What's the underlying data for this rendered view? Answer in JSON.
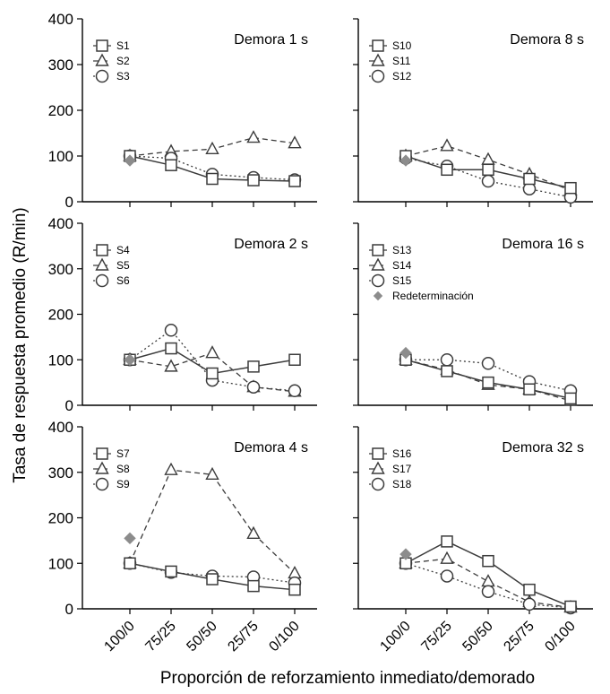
{
  "chart_data": {
    "type": "line",
    "ylabel": "Tasa de respuesta promedio (R/min)",
    "xlabel": "Proporción de reforzamiento inmediato/demorado",
    "categories": [
      "100/0",
      "75/25",
      "50/50",
      "25/75",
      "0/100"
    ],
    "ylim": [
      0,
      400
    ],
    "yticks": [
      "0",
      "100",
      "200",
      "300",
      "400"
    ],
    "redetermination_label": "Redeterminación",
    "panels": [
      {
        "title": "Demora 1 s",
        "series": [
          {
            "name": "S1",
            "marker": "square",
            "line": "solid",
            "values": [
              100,
              80,
              50,
              47,
              45
            ]
          },
          {
            "name": "S2",
            "marker": "triangle",
            "line": "dashed",
            "values": [
              100,
              110,
              115,
              140,
              128
            ]
          },
          {
            "name": "S3",
            "marker": "circle",
            "line": "dotted",
            "values": [
              100,
              95,
              60,
              53,
              48
            ]
          }
        ],
        "redetermination": 90
      },
      {
        "title": "Demora 8 s",
        "series": [
          {
            "name": "S10",
            "marker": "square",
            "line": "solid",
            "values": [
              100,
              70,
              70,
              50,
              30
            ]
          },
          {
            "name": "S11",
            "marker": "triangle",
            "line": "dashed",
            "values": [
              100,
              122,
              92,
              60,
              25
            ]
          },
          {
            "name": "S12",
            "marker": "circle",
            "line": "dotted",
            "values": [
              95,
              78,
              45,
              28,
              10
            ]
          }
        ],
        "redetermination": 90
      },
      {
        "title": "Demora 2 s",
        "series": [
          {
            "name": "S4",
            "marker": "square",
            "line": "solid",
            "values": [
              100,
              125,
              70,
              85,
              100
            ]
          },
          {
            "name": "S5",
            "marker": "triangle",
            "line": "dashed",
            "values": [
              100,
              85,
              115,
              40,
              30
            ]
          },
          {
            "name": "S6",
            "marker": "circle",
            "line": "dotted",
            "values": [
              100,
              165,
              55,
              40,
              32
            ]
          }
        ],
        "redetermination": 100
      },
      {
        "title": "Demora 16 s",
        "series": [
          {
            "name": "S13",
            "marker": "square",
            "line": "solid",
            "values": [
              100,
              75,
              50,
              35,
              15
            ]
          },
          {
            "name": "S14",
            "marker": "triangle",
            "line": "dashed",
            "values": [
              100,
              78,
              45,
              35,
              10
            ]
          },
          {
            "name": "S15",
            "marker": "circle",
            "line": "dotted",
            "values": [
              100,
              100,
              92,
              52,
              32
            ]
          }
        ],
        "redetermination": 115,
        "show_redetermination_legend": true
      },
      {
        "title": "Demora 4 s",
        "series": [
          {
            "name": "S7",
            "marker": "square",
            "line": "solid",
            "values": [
              100,
              82,
              65,
              50,
              42
            ]
          },
          {
            "name": "S8",
            "marker": "triangle",
            "line": "dashed",
            "values": [
              100,
              305,
              295,
              165,
              78
            ]
          },
          {
            "name": "S9",
            "marker": "circle",
            "line": "dotted",
            "values": [
              100,
              80,
              72,
              70,
              57
            ]
          }
        ],
        "redetermination": 155
      },
      {
        "title": "Demora 32 s",
        "series": [
          {
            "name": "S16",
            "marker": "square",
            "line": "solid",
            "values": [
              100,
              148,
              105,
              42,
              5
            ]
          },
          {
            "name": "S17",
            "marker": "triangle",
            "line": "dashed",
            "values": [
              100,
              110,
              60,
              15,
              3
            ]
          },
          {
            "name": "S18",
            "marker": "circle",
            "line": "dotted",
            "values": [
              100,
              72,
              38,
              10,
              2
            ]
          }
        ],
        "redetermination": 120
      }
    ]
  }
}
